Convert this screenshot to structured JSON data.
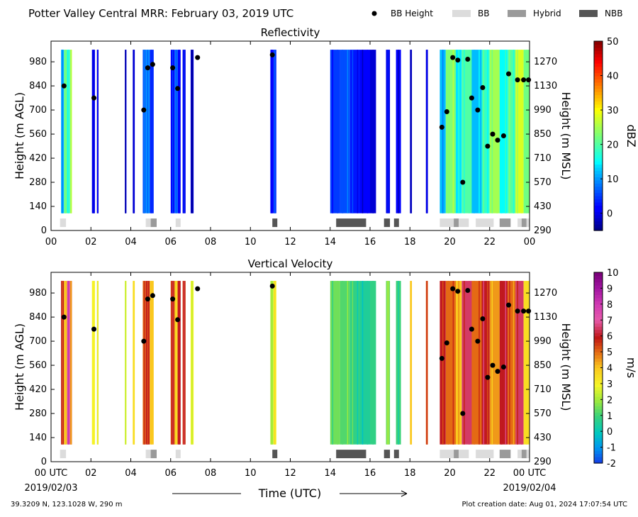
{
  "suptitle": "Potter Valley Central MRR:  February 03, 2019 UTC",
  "legend": {
    "items": [
      {
        "label": "BB Height",
        "kind": "dot",
        "color": "#000000"
      },
      {
        "label": "BB",
        "kind": "patch",
        "color": "#dcdcdc"
      },
      {
        "label": "Hybrid",
        "kind": "patch",
        "color": "#9a9a9a"
      },
      {
        "label": "NBB",
        "kind": "patch",
        "color": "#555555"
      }
    ]
  },
  "footer": {
    "location": "39.3209 N, 123.1028 W, 290 m",
    "created": "Plot creation date: Aug 01, 2024 17:07:54 UTC"
  },
  "axes_common": {
    "x_ticks": [
      0,
      2,
      4,
      6,
      8,
      10,
      12,
      14,
      16,
      18,
      20,
      22,
      24
    ],
    "x_tick_labels_top": [
      "00",
      "02",
      "04",
      "06",
      "08",
      "10",
      "12",
      "14",
      "16",
      "18",
      "20",
      "22",
      "00"
    ],
    "x_tick_labels_bottom": [
      "00 UTC",
      "02",
      "04",
      "06",
      "08",
      "10",
      "12",
      "14",
      "16",
      "18",
      "20",
      "22",
      "00 UTC"
    ],
    "date_start": "2019/02/03",
    "date_end": "2019/02/04",
    "xlabel": "Time (UTC)",
    "xlim": [
      0,
      24
    ],
    "y_ticks": [
      0,
      140,
      280,
      420,
      560,
      700,
      840,
      980
    ],
    "ylim": [
      0,
      1100
    ],
    "ylabel_left": "Height (m AGL)",
    "y2_ticks": [
      290,
      430,
      570,
      710,
      850,
      990,
      1130,
      1270
    ],
    "ylabel_right": "Height (m MSL)"
  },
  "chart_data": [
    {
      "type": "heatmap",
      "title": "Reflectivity",
      "colorbar": {
        "label": "dBZ",
        "vmin": -5,
        "vmax": 50,
        "ticks": [
          0,
          10,
          20,
          30,
          40,
          50
        ],
        "cmap": "jet"
      },
      "data_top": 1050,
      "data_bottom": 100,
      "columns": [
        {
          "t0": 0.5,
          "t1": 0.65,
          "v": 12
        },
        {
          "t0": 0.65,
          "t1": 0.8,
          "v": 22
        },
        {
          "t0": 0.8,
          "t1": 0.95,
          "v": 15
        },
        {
          "t0": 0.95,
          "t1": 1.05,
          "v": 28
        },
        {
          "t0": 2.05,
          "t1": 2.2,
          "v": 0
        },
        {
          "t0": 2.3,
          "t1": 2.38,
          "v": -2
        },
        {
          "t0": 3.7,
          "t1": 3.78,
          "v": 0
        },
        {
          "t0": 4.1,
          "t1": 4.2,
          "v": -1
        },
        {
          "t0": 4.6,
          "t1": 4.75,
          "v": 6
        },
        {
          "t0": 4.75,
          "t1": 4.95,
          "v": 10
        },
        {
          "t0": 4.95,
          "t1": 5.15,
          "v": 4
        },
        {
          "t0": 6.0,
          "t1": 6.2,
          "v": 2
        },
        {
          "t0": 6.2,
          "t1": 6.35,
          "v": 9
        },
        {
          "t0": 6.35,
          "t1": 6.5,
          "v": 1
        },
        {
          "t0": 6.6,
          "t1": 6.75,
          "v": 0
        },
        {
          "t0": 7.0,
          "t1": 7.15,
          "v": -1
        },
        {
          "t0": 11.0,
          "t1": 11.15,
          "v": 1
        },
        {
          "t0": 11.15,
          "t1": 11.3,
          "v": 4
        },
        {
          "t0": 14.0,
          "t1": 14.5,
          "v": 5
        },
        {
          "t0": 14.5,
          "t1": 15.0,
          "v": 6
        },
        {
          "t0": 15.0,
          "t1": 15.5,
          "v": 3
        },
        {
          "t0": 15.5,
          "t1": 16.0,
          "v": 1
        },
        {
          "t0": 16.0,
          "t1": 16.3,
          "v": -1
        },
        {
          "t0": 16.8,
          "t1": 17.0,
          "v": 0
        },
        {
          "t0": 17.3,
          "t1": 17.55,
          "v": 1
        },
        {
          "t0": 18.0,
          "t1": 18.1,
          "v": -2
        },
        {
          "t0": 18.8,
          "t1": 18.9,
          "v": -2
        },
        {
          "t0": 19.5,
          "t1": 19.8,
          "v": 12
        },
        {
          "t0": 19.8,
          "t1": 20.3,
          "v": 23
        },
        {
          "t0": 20.3,
          "t1": 20.6,
          "v": 14
        },
        {
          "t0": 20.6,
          "t1": 21.1,
          "v": 20
        },
        {
          "t0": 21.1,
          "t1": 21.6,
          "v": 12
        },
        {
          "t0": 21.6,
          "t1": 22.0,
          "v": 18
        },
        {
          "t0": 22.0,
          "t1": 22.5,
          "v": 25
        },
        {
          "t0": 22.5,
          "t1": 22.9,
          "v": 15
        },
        {
          "t0": 22.9,
          "t1": 23.3,
          "v": 20
        },
        {
          "t0": 23.3,
          "t1": 23.7,
          "v": 28
        },
        {
          "t0": 23.7,
          "t1": 24.0,
          "v": 22
        }
      ]
    },
    {
      "type": "heatmap",
      "title": "Vertical Velocity",
      "colorbar": {
        "label": "m/s",
        "vmin": -2,
        "vmax": 10,
        "ticks": [
          -2,
          -1,
          0,
          1,
          2,
          3,
          4,
          5,
          6,
          7,
          8,
          9,
          10
        ],
        "cmap": "velocity"
      },
      "data_top": 1050,
      "data_bottom": 100,
      "columns": [
        {
          "t0": 0.5,
          "t1": 0.65,
          "v": 6
        },
        {
          "t0": 0.65,
          "t1": 0.8,
          "v": 4
        },
        {
          "t0": 0.8,
          "t1": 0.95,
          "v": 7.5
        },
        {
          "t0": 0.95,
          "t1": 1.05,
          "v": 5
        },
        {
          "t0": 2.05,
          "t1": 2.2,
          "v": 3
        },
        {
          "t0": 2.3,
          "t1": 2.38,
          "v": 2.5
        },
        {
          "t0": 3.7,
          "t1": 3.78,
          "v": 3
        },
        {
          "t0": 4.1,
          "t1": 4.2,
          "v": 3.5
        },
        {
          "t0": 4.6,
          "t1": 4.75,
          "v": 5
        },
        {
          "t0": 4.75,
          "t1": 4.95,
          "v": 6
        },
        {
          "t0": 4.95,
          "t1": 5.15,
          "v": 4
        },
        {
          "t0": 6.0,
          "t1": 6.2,
          "v": 5.5
        },
        {
          "t0": 6.2,
          "t1": 6.35,
          "v": 4
        },
        {
          "t0": 6.35,
          "t1": 6.5,
          "v": 6
        },
        {
          "t0": 6.6,
          "t1": 6.75,
          "v": 5.5
        },
        {
          "t0": 7.0,
          "t1": 7.15,
          "v": 3
        },
        {
          "t0": 11.0,
          "t1": 11.15,
          "v": 2
        },
        {
          "t0": 11.15,
          "t1": 11.3,
          "v": 3
        },
        {
          "t0": 14.0,
          "t1": 14.5,
          "v": 1.5
        },
        {
          "t0": 14.5,
          "t1": 15.0,
          "v": 1.2
        },
        {
          "t0": 15.0,
          "t1": 15.5,
          "v": 0.8
        },
        {
          "t0": 15.5,
          "t1": 16.0,
          "v": 0.5
        },
        {
          "t0": 16.0,
          "t1": 16.3,
          "v": 0.8
        },
        {
          "t0": 16.8,
          "t1": 17.0,
          "v": 1.5
        },
        {
          "t0": 17.3,
          "t1": 17.55,
          "v": 1
        },
        {
          "t0": 18.0,
          "t1": 18.1,
          "v": 4
        },
        {
          "t0": 18.8,
          "t1": 18.9,
          "v": 5
        },
        {
          "t0": 19.5,
          "t1": 19.8,
          "v": 6
        },
        {
          "t0": 19.8,
          "t1": 20.3,
          "v": 5
        },
        {
          "t0": 20.3,
          "t1": 20.6,
          "v": 4
        },
        {
          "t0": 20.6,
          "t1": 21.1,
          "v": 6.5
        },
        {
          "t0": 21.1,
          "t1": 21.6,
          "v": 5
        },
        {
          "t0": 21.6,
          "t1": 22.0,
          "v": 6
        },
        {
          "t0": 22.0,
          "t1": 22.5,
          "v": 4.5
        },
        {
          "t0": 22.5,
          "t1": 22.9,
          "v": 6
        },
        {
          "t0": 22.9,
          "t1": 23.3,
          "v": 5
        },
        {
          "t0": 23.3,
          "t1": 23.7,
          "v": 6.5
        },
        {
          "t0": 23.7,
          "t1": 24.0,
          "v": 3.5
        }
      ]
    }
  ],
  "bb_height_points": [
    [
      0.65,
      840
    ],
    [
      2.15,
      770
    ],
    [
      4.65,
      700
    ],
    [
      4.85,
      945
    ],
    [
      5.1,
      965
    ],
    [
      6.1,
      945
    ],
    [
      6.35,
      825
    ],
    [
      7.35,
      1005
    ],
    [
      11.1,
      1020
    ],
    [
      19.6,
      600
    ],
    [
      19.85,
      690
    ],
    [
      20.15,
      1005
    ],
    [
      20.4,
      990
    ],
    [
      20.65,
      280
    ],
    [
      20.9,
      995
    ],
    [
      21.1,
      770
    ],
    [
      21.4,
      700
    ],
    [
      21.65,
      830
    ],
    [
      21.9,
      490
    ],
    [
      22.15,
      560
    ],
    [
      22.4,
      525
    ],
    [
      22.7,
      550
    ],
    [
      22.95,
      910
    ],
    [
      23.4,
      875
    ],
    [
      23.7,
      875
    ],
    [
      23.95,
      875
    ]
  ],
  "bb_strip": [
    {
      "t0": 0.45,
      "t1": 0.75,
      "cls": "BB"
    },
    {
      "t0": 4.75,
      "t1": 5.0,
      "cls": "BB"
    },
    {
      "t0": 5.0,
      "t1": 5.3,
      "cls": "Hybrid"
    },
    {
      "t0": 6.25,
      "t1": 6.5,
      "cls": "BB"
    },
    {
      "t0": 11.1,
      "t1": 11.35,
      "cls": "NBB"
    },
    {
      "t0": 14.3,
      "t1": 15.8,
      "cls": "NBB"
    },
    {
      "t0": 16.7,
      "t1": 17.0,
      "cls": "NBB"
    },
    {
      "t0": 17.2,
      "t1": 17.45,
      "cls": "NBB"
    },
    {
      "t0": 19.5,
      "t1": 20.2,
      "cls": "BB"
    },
    {
      "t0": 20.2,
      "t1": 20.45,
      "cls": "Hybrid"
    },
    {
      "t0": 20.45,
      "t1": 20.95,
      "cls": "BB"
    },
    {
      "t0": 21.3,
      "t1": 22.2,
      "cls": "BB"
    },
    {
      "t0": 22.5,
      "t1": 23.05,
      "cls": "Hybrid"
    },
    {
      "t0": 23.4,
      "t1": 23.6,
      "cls": "BB"
    },
    {
      "t0": 23.6,
      "t1": 23.85,
      "cls": "Hybrid"
    },
    {
      "t0": 23.85,
      "t1": 24.0,
      "cls": "BB"
    }
  ]
}
